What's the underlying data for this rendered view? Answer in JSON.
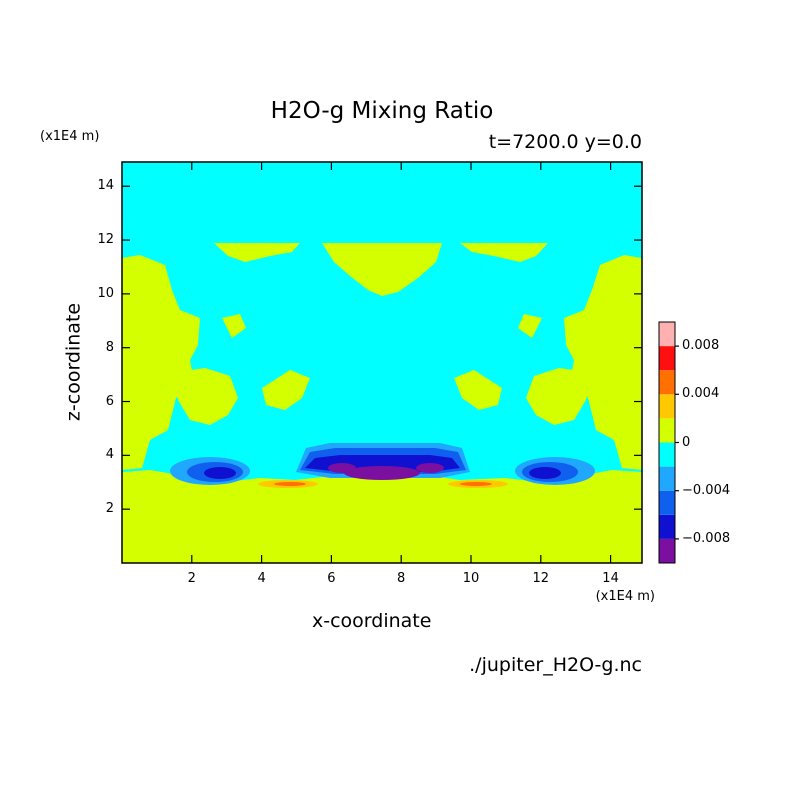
{
  "chart_data": {
    "type": "heatmap",
    "title": "H2O-g Mixing Ratio",
    "subtitle": "t=7200.0 y=0.0",
    "xlabel": "x-coordinate",
    "ylabel": "z-coordinate",
    "x_unit": "(x1E4 m)",
    "y_unit": "(x1E4 m)",
    "source_file": "./jupiter_H2O-g.nc",
    "xlim": [
      0,
      14.9
    ],
    "ylim": [
      0,
      14.9
    ],
    "x_ticks": [
      2,
      4,
      6,
      8,
      10,
      12,
      14
    ],
    "y_ticks": [
      2,
      4,
      6,
      8,
      10,
      12,
      14
    ],
    "grid": false,
    "colorbar": {
      "placement": "right",
      "levels": [
        -0.01,
        -0.008,
        -0.006,
        -0.004,
        -0.002,
        0,
        0.002,
        0.004,
        0.006,
        0.008,
        0.01
      ],
      "colors": [
        "#7a0fa0",
        "#1010d0",
        "#1060f0",
        "#20a8ff",
        "#00ffff",
        "#d4ff00",
        "#ffc800",
        "#ff7000",
        "#ff1010",
        "#ffb0b0"
      ],
      "tick_values": [
        0.008,
        0.004,
        0,
        -0.004,
        -0.008
      ],
      "tick_labels": [
        "0.008",
        "0.004",
        "0",
        "−0.004",
        "−0.008"
      ]
    }
  }
}
